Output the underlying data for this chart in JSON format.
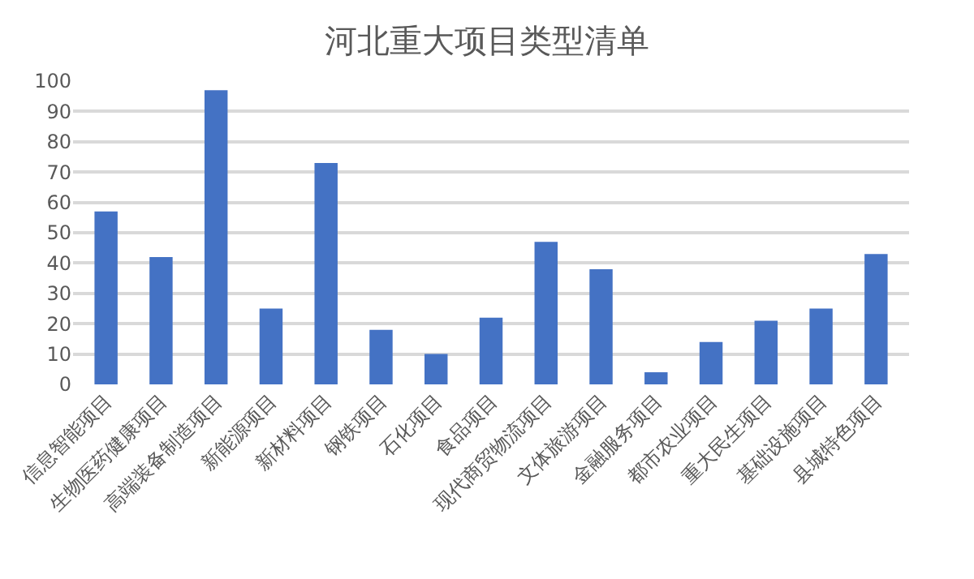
{
  "chart_data": {
    "type": "bar",
    "title": "河北重大项目类型清单",
    "categories": [
      "信息智能项目",
      "生物医药健康项目",
      "高端装备制造项目",
      "新能源项目",
      "新材料项目",
      "钢铁项目",
      "石化项目",
      "食品项目",
      "现代商贸物流项目",
      "文体旅游项目",
      "金融服务项目",
      "都市农业项目",
      "重大民生项目",
      "基础设施项目",
      "县城特色项目"
    ],
    "values": [
      57,
      42,
      97,
      25,
      73,
      18,
      10,
      22,
      47,
      38,
      4,
      14,
      21,
      25,
      43
    ],
    "color": "#4472c4",
    "ylim": [
      0,
      100
    ],
    "yticks": [
      0,
      10,
      20,
      30,
      40,
      50,
      60,
      70,
      80,
      90,
      100
    ],
    "grid": "y"
  }
}
